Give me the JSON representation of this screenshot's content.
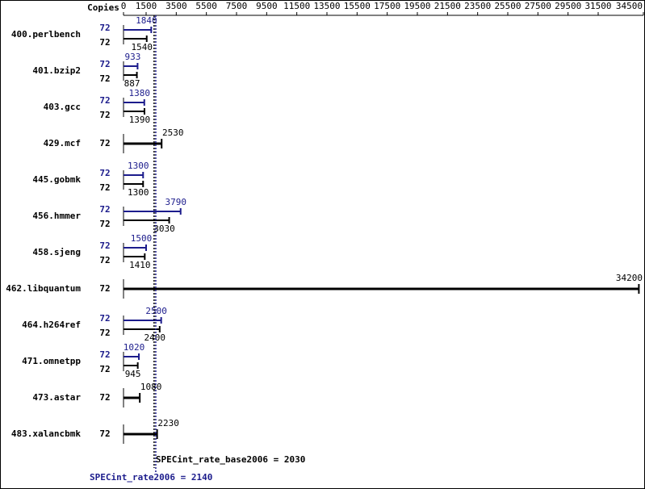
{
  "chart_data": {
    "type": "bar",
    "copies_label": "Copies",
    "categories": [
      "400.perlbench",
      "401.bzip2",
      "403.gcc",
      "429.mcf",
      "445.gobmk",
      "456.hmmer",
      "458.sjeng",
      "462.libquantum",
      "464.h264ref",
      "471.omnetpp",
      "473.astar",
      "483.xalancbmk"
    ],
    "xlim": [
      0,
      34500
    ],
    "xticks": [
      0,
      1500,
      3500,
      5500,
      7500,
      9500,
      11500,
      13500,
      15500,
      17500,
      19500,
      21500,
      23500,
      25500,
      27500,
      29500,
      31500,
      34500
    ],
    "series": [
      {
        "color": "#000000",
        "copies": [
          72,
          72,
          72,
          72,
          72,
          72,
          72,
          72,
          72,
          72,
          72,
          72
        ],
        "values": [
          1540,
          887,
          1390,
          2530,
          1300,
          3030,
          1410,
          34200,
          2400,
          945,
          1080,
          2230
        ]
      },
      {
        "color": "#1c1c8c",
        "copies": [
          72,
          72,
          72,
          null,
          72,
          72,
          72,
          null,
          72,
          72,
          null,
          null
        ],
        "values": [
          1840,
          933,
          1380,
          null,
          1300,
          3790,
          1500,
          null,
          2500,
          1020,
          null,
          null
        ]
      }
    ],
    "reference_lines": [
      {
        "label": "SPECint_rate_base2006 = 2030",
        "value": 2030,
        "color": "#000000"
      },
      {
        "label": "SPECint_rate2006 = 2140",
        "value": 2140,
        "color": "#1c1c8c"
      }
    ]
  }
}
